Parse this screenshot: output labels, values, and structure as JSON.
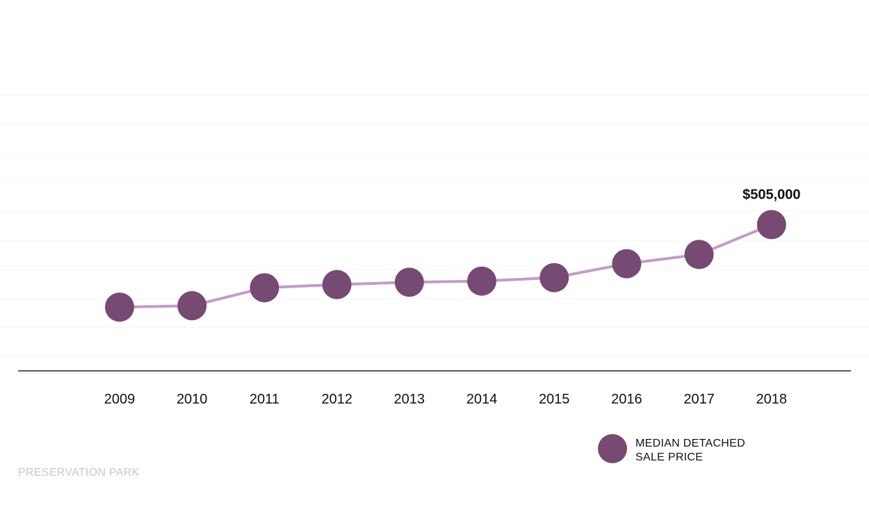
{
  "chart_data": {
    "type": "line",
    "x": [
      "2009",
      "2010",
      "2011",
      "2012",
      "2013",
      "2014",
      "2015",
      "2016",
      "2017",
      "2018"
    ],
    "series": [
      {
        "name": "MEDIAN DETACHED SALE PRICE",
        "values": [
          220000,
          225000,
          287000,
          298000,
          306000,
          310000,
          322000,
          370000,
          402000,
          505000
        ]
      }
    ],
    "annotations": [
      {
        "x": "2018",
        "text": "$505,000"
      }
    ],
    "ylim": [
      0,
      1000000
    ],
    "grid": true,
    "legend": {
      "position": "bottom-right",
      "lines": [
        "MEDIAN DETACHED",
        "SALE PRICE"
      ]
    },
    "colors": {
      "line": "#c39bc9",
      "marker": "#764a72",
      "grid": "#f3f3f3",
      "axis": "#222222"
    }
  },
  "footer": {
    "text": "PRESERVATION PARK"
  }
}
